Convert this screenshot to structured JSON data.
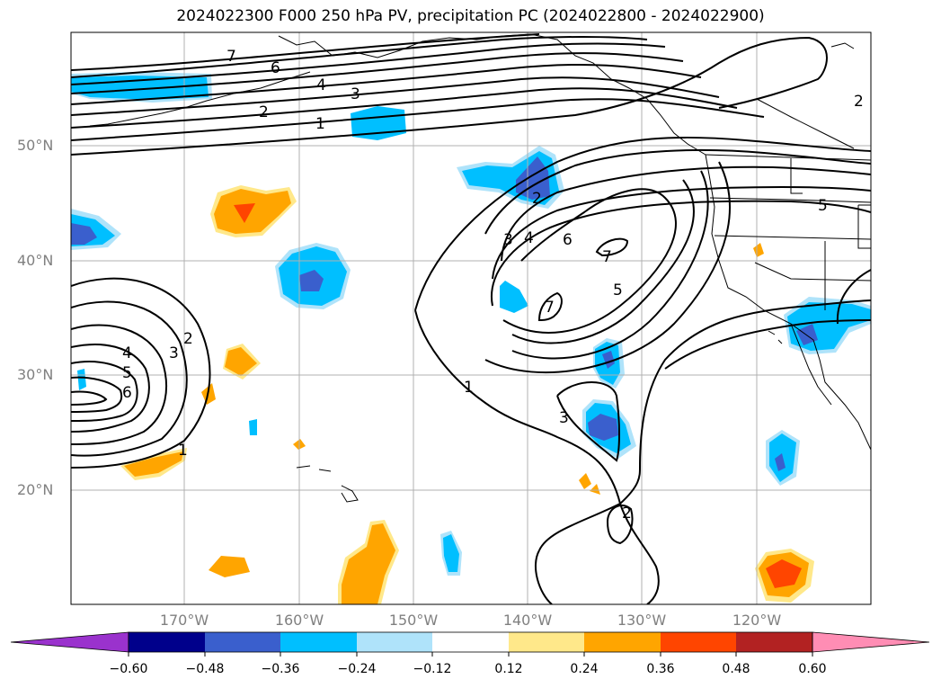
{
  "title": "2024022300 F000 250 hPa PV, precipitation PC (2024022800 - 2024022900)",
  "lat_labels": [
    "50°N",
    "40°N",
    "30°N",
    "20°N"
  ],
  "lon_labels": [
    "170°W",
    "160°W",
    "150°W",
    "140°W",
    "130°W",
    "120°W"
  ],
  "contour_labels": [
    "7",
    "6",
    "4",
    "3",
    "2",
    "1",
    "2",
    "3",
    "4",
    "6",
    "7",
    "5",
    "7",
    "4",
    "5",
    "6",
    "3",
    "2",
    "1",
    "1",
    "3",
    "2",
    "5",
    "2"
  ],
  "colorbar": {
    "ticks": [
      "−0.60",
      "−0.48",
      "−0.36",
      "−0.24",
      "−0.12",
      "0.12",
      "0.24",
      "0.36",
      "0.48",
      "0.60"
    ],
    "colors": [
      "#9a32cd",
      "#00008b",
      "#3a5fcd",
      "#00bfff",
      "#afe3fa",
      "#ffffff",
      "#ffe88a",
      "#ffa500",
      "#ff4500",
      "#b22222",
      "#ff7fae",
      "#ff8db4"
    ]
  },
  "colors": {
    "neg_light": "#afe3fa",
    "neg_mid": "#00bfff",
    "neg_strong": "#3a5fcd",
    "pos_light": "#ffe88a",
    "pos_mid": "#ffa500",
    "pos_strong": "#ff4500"
  }
}
